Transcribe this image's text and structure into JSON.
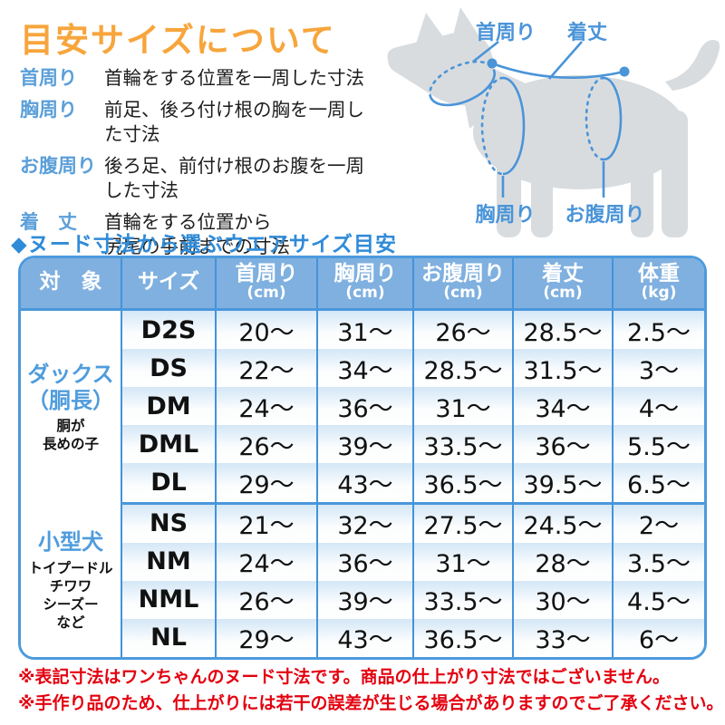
{
  "title": "目安サイズについて",
  "definitions": [
    {
      "term": "首周り",
      "desc": "首輪をする位置を一周した寸法"
    },
    {
      "term": "胸周り",
      "desc": "前足、後ろ付け根の胸を一周した寸法"
    },
    {
      "term": "お腹周り",
      "desc": "後ろ足、前付け根のお腹を一周した寸法"
    },
    {
      "term": "着　丈",
      "desc": "首輪をする位置から",
      "desc2": "尻尾の手前までの寸法"
    }
  ],
  "diagram": {
    "neck_label": "首周り",
    "length_label": "着丈",
    "chest_label": "胸周り",
    "belly_label": "お腹周り"
  },
  "table": {
    "subtitle": "◆ヌード寸法から選ぶウエアサイズ目安",
    "columns": [
      {
        "label": "対　象",
        "unit": ""
      },
      {
        "label": "サイズ",
        "unit": ""
      },
      {
        "label": "首周り",
        "unit": "(cm)"
      },
      {
        "label": "胸周り",
        "unit": "(cm)"
      },
      {
        "label": "お腹周り",
        "unit": "(cm)"
      },
      {
        "label": "着丈",
        "unit": "(cm)"
      },
      {
        "label": "体重",
        "unit": "(kg)"
      }
    ],
    "groups": [
      {
        "name_lines": [
          "ダックス",
          "（胴長）"
        ],
        "sub_lines": [
          "胴が",
          "長めの子"
        ],
        "rows": [
          {
            "size": "D2S",
            "values": [
              "20～",
              "31～",
              "26～",
              "28.5～",
              "2.5～"
            ]
          },
          {
            "size": "DS",
            "values": [
              "22～",
              "34～",
              "28.5～",
              "31.5～",
              "3～"
            ]
          },
          {
            "size": "DM",
            "values": [
              "24～",
              "36～",
              "31～",
              "34～",
              "4～"
            ]
          },
          {
            "size": "DML",
            "values": [
              "26～",
              "39～",
              "33.5～",
              "36～",
              "5.5～"
            ]
          },
          {
            "size": "DL",
            "values": [
              "29～",
              "43～",
              "36.5～",
              "39.5～",
              "6.5～"
            ]
          }
        ]
      },
      {
        "name_lines": [
          "小型犬"
        ],
        "sub_lines": [
          "トイプードル",
          "チワワ",
          "シーズー",
          "など"
        ],
        "rows": [
          {
            "size": "NS",
            "values": [
              "21～",
              "32～",
              "27.5～",
              "24.5～",
              "2～"
            ]
          },
          {
            "size": "NM",
            "values": [
              "24～",
              "36～",
              "31～",
              "28～",
              "3.5～"
            ]
          },
          {
            "size": "NML",
            "values": [
              "26～",
              "39～",
              "33.5～",
              "30～",
              "4.5～"
            ]
          },
          {
            "size": "NL",
            "values": [
              "29～",
              "43～",
              "36.5～",
              "33～",
              "6～"
            ]
          }
        ]
      }
    ]
  },
  "notes": [
    "※表記寸法はワンちゃんのヌード寸法です。商品の仕上がり寸法ではございません。",
    "※手作り品のため、仕上がりには若干の誤差が生じる場合がありますのでご了承ください。"
  ],
  "colors": {
    "title_orange": "#f7a53c",
    "label_blue": "#5b9fd9",
    "subtitle_blue": "#2f8bd8",
    "header_bg": "#7fb0df",
    "border_blue": "#4c9ade",
    "stripe_blue": "#d4e7f6",
    "group_text_blue": "#4f9cdc",
    "note_red": "#e3000f",
    "dog_gray": "#d9dcdf",
    "measure_blue": "#4a94d8"
  }
}
